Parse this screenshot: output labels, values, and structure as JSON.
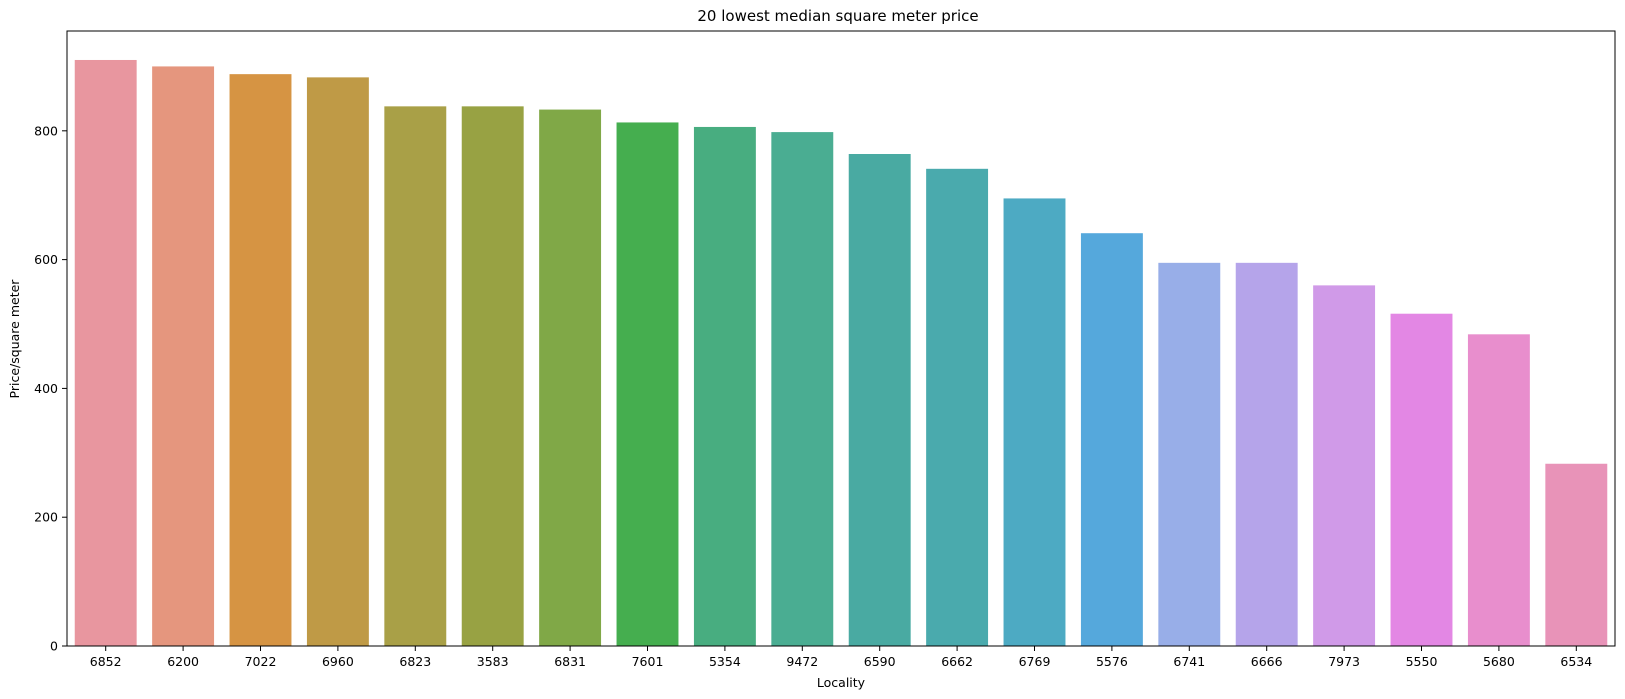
{
  "chart_data": {
    "type": "bar",
    "title": "20 lowest median square meter price",
    "xlabel": "Locality",
    "ylabel": "Price/square meter",
    "ylim": [
      0,
      955
    ],
    "yticks": [
      0,
      200,
      400,
      600,
      800
    ],
    "grid": false,
    "categories": [
      "6852",
      "6200",
      "7022",
      "6960",
      "6823",
      "3583",
      "6831",
      "7601",
      "5354",
      "9472",
      "6590",
      "6662",
      "6769",
      "5576",
      "6741",
      "6666",
      "7973",
      "5550",
      "5680",
      "6534"
    ],
    "values": [
      910,
      900,
      888,
      883,
      838,
      838,
      833,
      813,
      806,
      798,
      764,
      741,
      695,
      641,
      595,
      595,
      560,
      516,
      484,
      283
    ],
    "colors": [
      "#e8969f",
      "#e5967e",
      "#d69443",
      "#bf9a46",
      "#a9a047",
      "#98a243",
      "#80a847",
      "#45ae4f",
      "#48ad80",
      "#4aad92",
      "#49aaa2",
      "#4aaaad",
      "#4daac3",
      "#55a8dc",
      "#98aee8",
      "#b5a4ea",
      "#d09ae8",
      "#e387e4",
      "#e88ecd",
      "#e893b8"
    ]
  }
}
